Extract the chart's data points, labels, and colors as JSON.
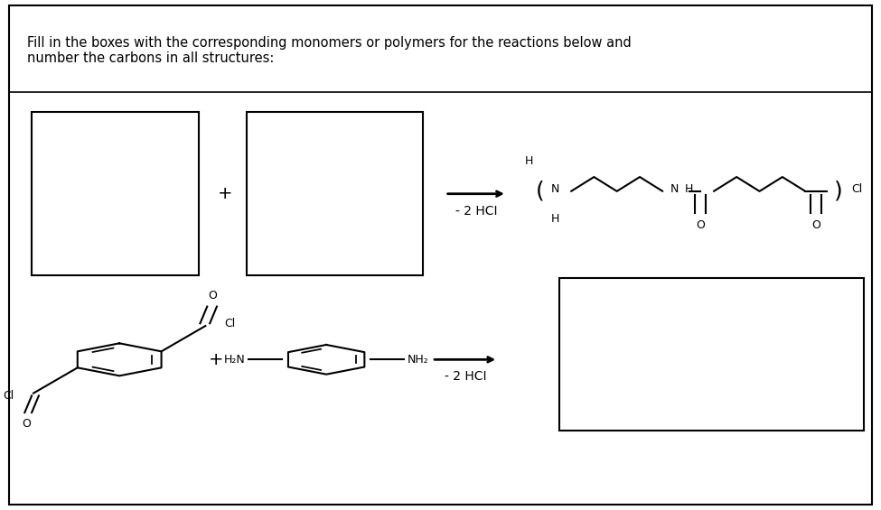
{
  "title": "Fill in the boxes with the corresponding monomers or polymers for the reactions below and\nnumber the carbons in all structures:",
  "background": "#ffffff",
  "border_color": "#000000",
  "reaction1_label": "- 2 HCI",
  "reaction2_label": "- 2 HCI"
}
